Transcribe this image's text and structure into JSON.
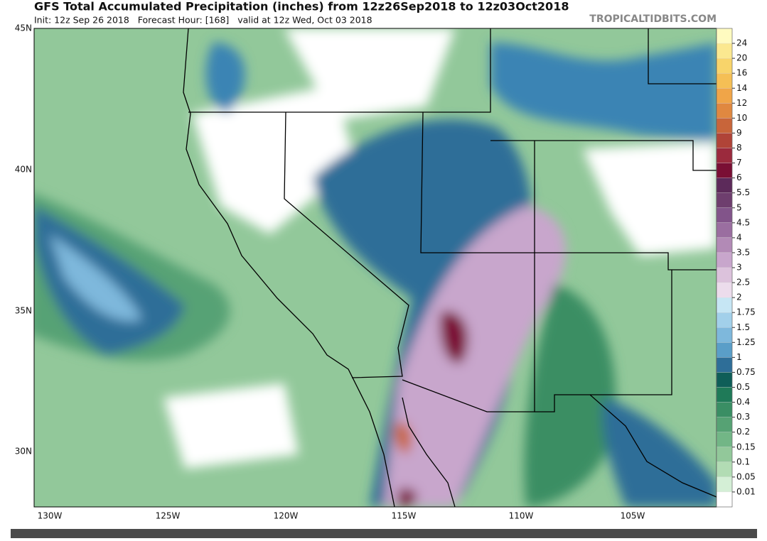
{
  "header": {
    "title": "GFS Total Accumulated Precipitation (inches) from 12z26Sep2018 to 12z03Oct2018",
    "subtitle": "Init: 12z Sep 26 2018   Forecast Hour: [168]   valid at 12z Wed, Oct 03 2018",
    "watermark": "TROPICALTIDBITS.COM"
  },
  "map": {
    "lat_labels": [
      "45N",
      "40N",
      "35N",
      "30N"
    ],
    "lon_labels": [
      "130W",
      "125W",
      "120W",
      "115W",
      "110W",
      "105W"
    ]
  },
  "colorbar": {
    "labels": [
      "24",
      "20",
      "16",
      "14",
      "12",
      "10",
      "9",
      "8",
      "7",
      "6",
      "5.5",
      "5",
      "4.5",
      "4",
      "3.5",
      "3",
      "2.5",
      "2",
      "1.75",
      "1.5",
      "1.25",
      "1",
      "0.75",
      "0.5",
      "0.4",
      "0.3",
      "0.2",
      "0.15",
      "0.1",
      "0.05",
      "0.01"
    ],
    "colors": [
      "#fffbc0",
      "#fbe890",
      "#f8d46a",
      "#f5bf55",
      "#f0a548",
      "#e08840",
      "#c8653a",
      "#b04438",
      "#9b2a3d",
      "#7a0f34",
      "#5c2a5a",
      "#6e3e6e",
      "#82548a",
      "#9a6ea0",
      "#b28ab6",
      "#c8a6cc",
      "#dcc2dc",
      "#ecdcec",
      "#c6e6f4",
      "#a2d0ea",
      "#7eb8dc",
      "#5a9ec8",
      "#2e6e98",
      "#0f5e58",
      "#1f7a58",
      "#3a8e64",
      "#56a274",
      "#72b686",
      "#92c89a",
      "#b2dcb4",
      "#d4efd6",
      "#ffffff"
    ]
  }
}
